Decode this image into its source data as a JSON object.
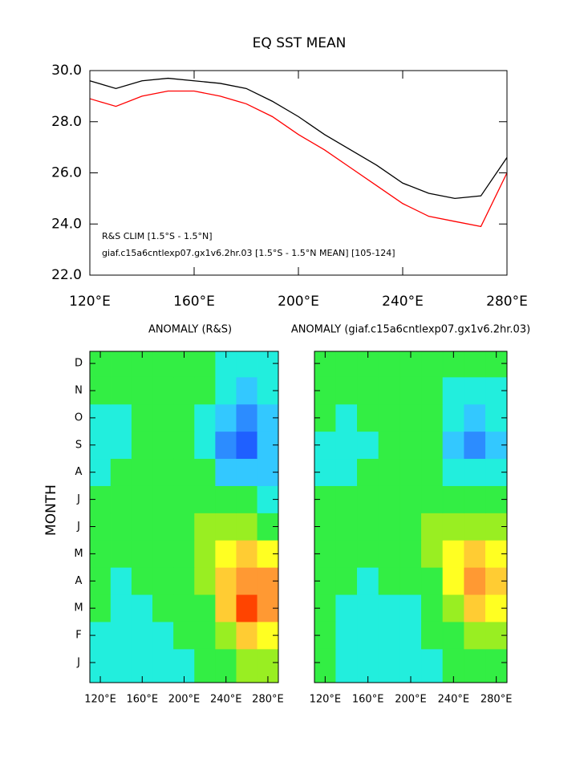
{
  "chart_data": [
    {
      "type": "line",
      "title": "EQ SST MEAN",
      "x": [
        120,
        130,
        140,
        150,
        160,
        170,
        180,
        190,
        200,
        210,
        220,
        230,
        240,
        250,
        260,
        270,
        280
      ],
      "series": [
        {
          "name": "R&S CLIM [1.5°S - 1.5°N]",
          "color": "#ff0000",
          "values": [
            28.9,
            28.6,
            29.0,
            29.2,
            29.2,
            29.0,
            28.7,
            28.2,
            27.5,
            26.9,
            26.2,
            25.5,
            24.8,
            24.3,
            24.1,
            23.9,
            26.0
          ]
        },
        {
          "name": "giaf.c15a6cntlexp07.gx1v6.2hr.03 [1.5°S - 1.5°N MEAN] [105-124]",
          "color": "#000000",
          "values": [
            29.6,
            29.3,
            29.6,
            29.7,
            29.6,
            29.5,
            29.3,
            28.8,
            28.2,
            27.5,
            26.9,
            26.3,
            25.6,
            25.2,
            25.0,
            25.1,
            26.6
          ]
        }
      ],
      "xlim": [
        120,
        280
      ],
      "xticks": [
        {
          "value": 120,
          "label": "120°E"
        },
        {
          "value": 160,
          "label": "160°E"
        },
        {
          "value": 200,
          "label": "200°E"
        },
        {
          "value": 240,
          "label": "240°E"
        },
        {
          "value": 280,
          "label": "280°E"
        }
      ],
      "ylim": [
        22,
        30
      ],
      "yticks": [
        {
          "value": 22,
          "label": "22.0"
        },
        {
          "value": 24,
          "label": "24.0"
        },
        {
          "value": 26,
          "label": "26.0"
        },
        {
          "value": 28,
          "label": "28.0"
        },
        {
          "value": 30,
          "label": "30.0"
        }
      ]
    },
    {
      "type": "contour",
      "title": "ANOMALY (R&S)",
      "ylabel": "MONTH",
      "categories": [
        "J",
        "F",
        "M",
        "A",
        "M",
        "J",
        "J",
        "A",
        "S",
        "O",
        "N",
        "D"
      ],
      "x": [
        120,
        140,
        160,
        180,
        200,
        220,
        240,
        260,
        280
      ],
      "xlim": [
        110,
        290
      ],
      "xticks": [
        {
          "value": 120,
          "label": "120°E"
        },
        {
          "value": 160,
          "label": "160°E"
        },
        {
          "value": 200,
          "label": "200°E"
        },
        {
          "value": 240,
          "label": "240°E"
        },
        {
          "value": 280,
          "label": "280°E"
        }
      ],
      "levels": [
        -2.0,
        -1.6,
        -1.2,
        -0.8,
        -0.4,
        0.4,
        0.8,
        1.2,
        1.6,
        2.0
      ],
      "colors": [
        "#1030ff",
        "#1f60ff",
        "#2c8cff",
        "#33c8ff",
        "#22eedd",
        "#33ee44",
        "#99ee22",
        "#ffff22",
        "#ffcc33",
        "#ff9933",
        "#ff4400"
      ],
      "values": [
        [
          -0.6,
          -0.6,
          -0.5,
          -0.6,
          -0.5,
          -0.3,
          0.2,
          0.6,
          0.4
        ],
        [
          -0.5,
          -0.7,
          -0.6,
          -0.5,
          -0.3,
          0.0,
          0.6,
          1.4,
          1.0
        ],
        [
          -0.4,
          -0.6,
          -0.5,
          -0.4,
          -0.2,
          0.3,
          1.2,
          2.0,
          1.8
        ],
        [
          -0.3,
          -0.5,
          -0.4,
          -0.2,
          0.0,
          0.4,
          1.2,
          1.8,
          1.6
        ],
        [
          0.2,
          -0.2,
          -0.3,
          -0.1,
          0.1,
          0.5,
          1.0,
          1.2,
          1.0
        ],
        [
          0.1,
          -0.2,
          -0.2,
          0.0,
          0.2,
          0.4,
          0.6,
          0.5,
          0.2
        ],
        [
          -0.3,
          -0.3,
          -0.2,
          0.0,
          0.0,
          0.1,
          0.0,
          -0.4,
          -0.6
        ],
        [
          -0.8,
          -0.4,
          -0.3,
          0.0,
          -0.1,
          -0.4,
          -0.9,
          -1.2,
          -1.0
        ],
        [
          -0.8,
          -0.5,
          -0.3,
          0.0,
          -0.2,
          -0.6,
          -1.3,
          -1.8,
          -1.2
        ],
        [
          -0.6,
          -0.5,
          -0.2,
          0.0,
          -0.1,
          -0.5,
          -1.1,
          -1.6,
          -1.0
        ],
        [
          -0.3,
          -0.2,
          -0.1,
          0.1,
          0.0,
          -0.3,
          -0.8,
          -1.1,
          -0.7
        ],
        [
          -0.1,
          0.0,
          0.1,
          0.1,
          0.0,
          -0.2,
          -0.5,
          -0.7,
          -0.5
        ]
      ]
    },
    {
      "type": "contour",
      "title": "ANOMALY (giaf.c15a6cntlexp07.gx1v6.2hr.03)",
      "x": [
        120,
        140,
        160,
        180,
        200,
        220,
        240,
        260,
        280
      ],
      "xlim": [
        110,
        290
      ],
      "xticks": [
        {
          "value": 120,
          "label": "120°E"
        },
        {
          "value": 160,
          "label": "160°E"
        },
        {
          "value": 200,
          "label": "200°E"
        },
        {
          "value": 240,
          "label": "240°E"
        },
        {
          "value": 280,
          "label": "280°E"
        }
      ],
      "levels": [
        -2.0,
        -1.6,
        -1.2,
        -0.8,
        -0.4,
        0.4,
        0.8,
        1.2,
        1.6,
        2.0
      ],
      "colors": [
        "#1030ff",
        "#1f60ff",
        "#2c8cff",
        "#33c8ff",
        "#22eedd",
        "#33ee44",
        "#99ee22",
        "#ffff22",
        "#ffcc33",
        "#ff9933",
        "#ff4400"
      ],
      "values": [
        [
          -0.4,
          -0.6,
          -0.6,
          -0.6,
          -0.6,
          -0.5,
          -0.2,
          0.2,
          0.2
        ],
        [
          -0.4,
          -0.6,
          -0.7,
          -0.7,
          -0.6,
          -0.4,
          0.0,
          0.6,
          0.5
        ],
        [
          -0.3,
          -0.5,
          -0.6,
          -0.6,
          -0.5,
          -0.1,
          0.5,
          1.2,
          1.0
        ],
        [
          -0.2,
          -0.4,
          -0.5,
          -0.4,
          -0.2,
          0.2,
          0.9,
          1.6,
          1.4
        ],
        [
          0.0,
          -0.3,
          -0.4,
          -0.2,
          0.1,
          0.4,
          1.0,
          1.2,
          1.0
        ],
        [
          0.1,
          -0.2,
          -0.2,
          0.0,
          0.2,
          0.4,
          0.6,
          0.6,
          0.4
        ],
        [
          -0.2,
          -0.3,
          -0.2,
          0.0,
          0.1,
          0.2,
          0.1,
          -0.1,
          -0.2
        ],
        [
          -0.5,
          -0.5,
          -0.4,
          -0.1,
          0.0,
          -0.1,
          -0.5,
          -0.8,
          -0.7
        ],
        [
          -0.5,
          -0.6,
          -0.5,
          -0.2,
          0.0,
          -0.3,
          -0.9,
          -1.4,
          -1.0
        ],
        [
          -0.4,
          -0.5,
          -0.4,
          -0.1,
          0.0,
          -0.2,
          -0.7,
          -1.0,
          -0.8
        ],
        [
          -0.2,
          -0.3,
          -0.2,
          0.0,
          0.0,
          -0.1,
          -0.5,
          -0.7,
          -0.5
        ],
        [
          0.1,
          -0.1,
          -0.1,
          0.1,
          0.1,
          0.0,
          -0.2,
          -0.4,
          -0.3
        ]
      ]
    }
  ]
}
